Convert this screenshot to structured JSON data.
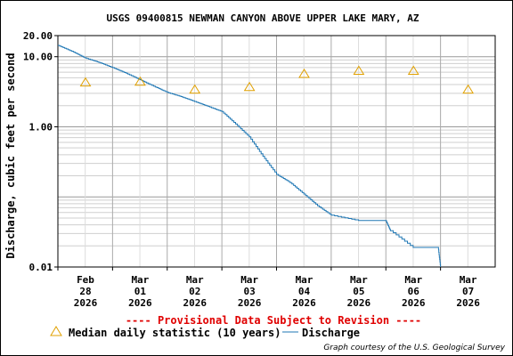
{
  "chart_data": {
    "type": "line",
    "title": "USGS 09400815 NEWMAN CANYON ABOVE UPPER LAKE MARY, AZ",
    "ylabel": "Discharge, cubic feet per second",
    "yscale": "log",
    "ylim": [
      0.01,
      20
    ],
    "y_tick_labels": [
      "20.00",
      "10.00",
      "1.00",
      "0.01"
    ],
    "y_tick_values": [
      20,
      10,
      1,
      0.01
    ],
    "xlim": [
      "2026-02-28",
      "2026-03-08"
    ],
    "x_ticks": [
      {
        "date": "2026-02-28",
        "lines": [
          "Feb",
          "28",
          "2026"
        ]
      },
      {
        "date": "2026-03-01",
        "lines": [
          "Mar",
          "01",
          "2026"
        ]
      },
      {
        "date": "2026-03-02",
        "lines": [
          "Mar",
          "02",
          "2026"
        ]
      },
      {
        "date": "2026-03-03",
        "lines": [
          "Mar",
          "03",
          "2026"
        ]
      },
      {
        "date": "2026-03-04",
        "lines": [
          "Mar",
          "04",
          "2026"
        ]
      },
      {
        "date": "2026-03-05",
        "lines": [
          "Mar",
          "05",
          "2026"
        ]
      },
      {
        "date": "2026-03-06",
        "lines": [
          "Mar",
          "06",
          "2026"
        ]
      },
      {
        "date": "2026-03-07",
        "lines": [
          "Mar",
          "07",
          "2026"
        ]
      }
    ],
    "grid": true,
    "series": [
      {
        "name": "Discharge",
        "kind": "line",
        "color": "#1f77b4",
        "points": [
          [
            "2026-02-28T00:00",
            14.5
          ],
          [
            "2026-02-28T06:00",
            12.0
          ],
          [
            "2026-02-28T12:00",
            9.6
          ],
          [
            "2026-02-28T18:00",
            8.3
          ],
          [
            "2026-03-01T00:00",
            7.0
          ],
          [
            "2026-03-01T06:00",
            5.8
          ],
          [
            "2026-03-01T12:00",
            4.7
          ],
          [
            "2026-03-01T18:00",
            3.8
          ],
          [
            "2026-03-02T00:00",
            3.1
          ],
          [
            "2026-03-02T06:00",
            2.7
          ],
          [
            "2026-03-02T12:00",
            2.3
          ],
          [
            "2026-03-02T18:00",
            1.95
          ],
          [
            "2026-03-03T00:00",
            1.65
          ],
          [
            "2026-03-03T06:00",
            1.1
          ],
          [
            "2026-03-03T12:00",
            0.72
          ],
          [
            "2026-03-03T18:00",
            0.38
          ],
          [
            "2026-03-04T00:00",
            0.21
          ],
          [
            "2026-03-04T06:00",
            0.16
          ],
          [
            "2026-03-04T12:00",
            0.11
          ],
          [
            "2026-03-04T18:00",
            0.075
          ],
          [
            "2026-03-05T00:00",
            0.055
          ],
          [
            "2026-03-05T12:00",
            0.046
          ],
          [
            "2026-03-06T00:00",
            0.046
          ],
          [
            "2026-03-06T02:00",
            0.033
          ],
          [
            "2026-03-06T12:00",
            0.019
          ],
          [
            "2026-03-06T23:00",
            0.019
          ],
          [
            "2026-03-07T00:00",
            0.01
          ]
        ]
      },
      {
        "name": "Median daily statistic (10 years)",
        "kind": "marker",
        "color": "#e0a000",
        "points": [
          [
            "2026-02-28",
            4.3
          ],
          [
            "2026-03-01",
            4.4
          ],
          [
            "2026-03-02",
            3.4
          ],
          [
            "2026-03-03",
            3.7
          ],
          [
            "2026-03-04",
            5.7
          ],
          [
            "2026-03-05",
            6.3
          ],
          [
            "2026-03-06",
            6.3
          ],
          [
            "2026-03-07",
            3.4
          ]
        ]
      }
    ]
  },
  "notice": "---- Provisional Data Subject to Revision ----",
  "legend": {
    "median_label": "Median daily statistic (10 years)",
    "discharge_label": "Discharge"
  },
  "credit": "Graph courtesy of the U.S. Geological Survey"
}
